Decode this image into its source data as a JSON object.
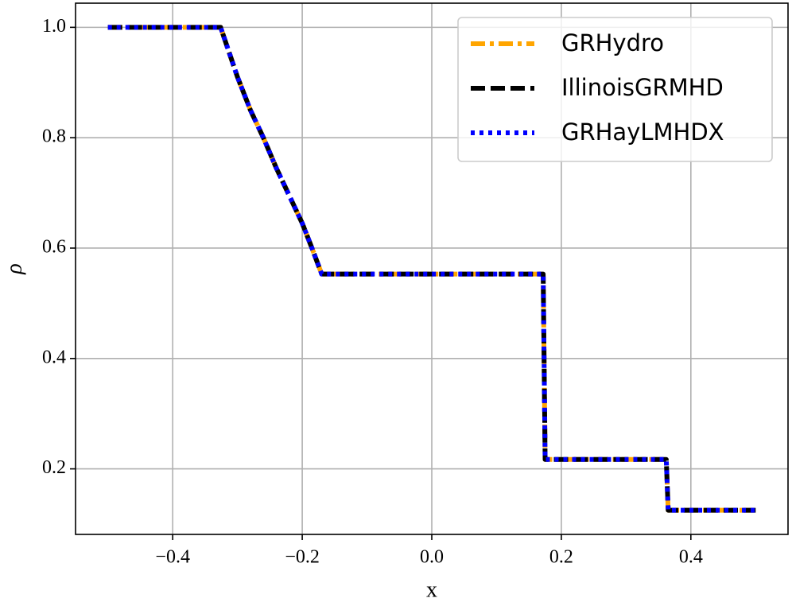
{
  "chart_data": {
    "type": "line",
    "xlabel": "x",
    "ylabel": "ρ",
    "x": [
      -0.5,
      -0.326,
      -0.3,
      -0.28,
      -0.26,
      -0.24,
      -0.22,
      -0.2,
      -0.185,
      -0.17,
      0.172,
      0.175,
      0.362,
      0.365,
      0.5
    ],
    "series": [
      {
        "name": "GRHydro",
        "color": "#ffa500",
        "linestyle": "dashdot",
        "values": [
          1.0,
          1.0,
          0.91,
          0.85,
          0.8,
          0.745,
          0.695,
          0.645,
          0.6,
          0.553,
          0.553,
          0.217,
          0.217,
          0.125,
          0.125
        ]
      },
      {
        "name": "IllinoisGRMHD",
        "color": "#000000",
        "linestyle": "dashed",
        "values": [
          1.0,
          1.0,
          0.91,
          0.85,
          0.8,
          0.745,
          0.695,
          0.645,
          0.6,
          0.553,
          0.553,
          0.217,
          0.217,
          0.125,
          0.125
        ]
      },
      {
        "name": "GRHayLMHDX",
        "color": "#0000ff",
        "linestyle": "dotted",
        "values": [
          1.0,
          1.0,
          0.91,
          0.85,
          0.8,
          0.745,
          0.695,
          0.645,
          0.6,
          0.553,
          0.553,
          0.217,
          0.217,
          0.125,
          0.125
        ]
      }
    ],
    "xlim": [
      -0.55,
      0.55
    ],
    "ylim": [
      0.08125,
      1.04375
    ],
    "xticks": [
      {
        "value": -0.4,
        "label": "−0.4"
      },
      {
        "value": -0.2,
        "label": "−0.2"
      },
      {
        "value": 0,
        "label": "0.0"
      },
      0.2,
      0.4
    ],
    "yticks": [
      0.2,
      0.4,
      0.6,
      0.8,
      {
        "value": 1.0,
        "label": "1.0"
      }
    ],
    "grid": true,
    "legend": "upper-right"
  }
}
